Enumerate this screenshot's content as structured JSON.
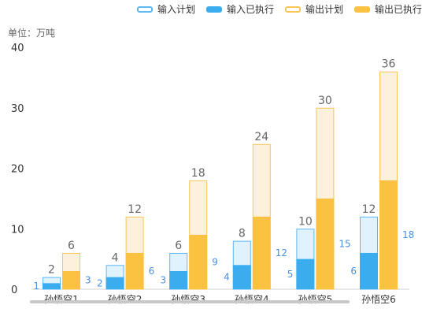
{
  "chart_data": {
    "type": "bar",
    "unit_label": "单位：万吨",
    "categories": [
      "孙悟空1",
      "孙悟空2",
      "孙悟空3",
      "孙悟空4",
      "孙悟空5",
      "孙悟空6"
    ],
    "series": [
      {
        "name": "输入计划",
        "values": [
          2,
          4,
          6,
          8,
          10,
          12
        ],
        "stack": "input",
        "fill": "#e0f2fd",
        "stroke": "#5cb8f0",
        "legend_style": "outline"
      },
      {
        "name": "输入已执行",
        "values": [
          1,
          2,
          3,
          4,
          5,
          6
        ],
        "stack": "input",
        "fill": "#3badee",
        "stroke": "#3badee",
        "legend_style": "solid"
      },
      {
        "name": "输出计划",
        "values": [
          6,
          12,
          18,
          24,
          30,
          36
        ],
        "stack": "output",
        "fill": "#fdf0dc",
        "stroke": "#fbc658",
        "legend_style": "outline"
      },
      {
        "name": "输出已执行",
        "values": [
          3,
          6,
          9,
          12,
          15,
          18
        ],
        "stack": "output",
        "fill": "#fbc242",
        "stroke": "#fbc242",
        "legend_style": "solid"
      }
    ],
    "y_ticks": [
      "0",
      "10",
      "20",
      "30",
      "40"
    ],
    "ylim": [
      0,
      40
    ],
    "grid": false,
    "legend_position": "top-right",
    "label_colors": {
      "plan": "#666666",
      "executed": "#4a90e2"
    }
  }
}
